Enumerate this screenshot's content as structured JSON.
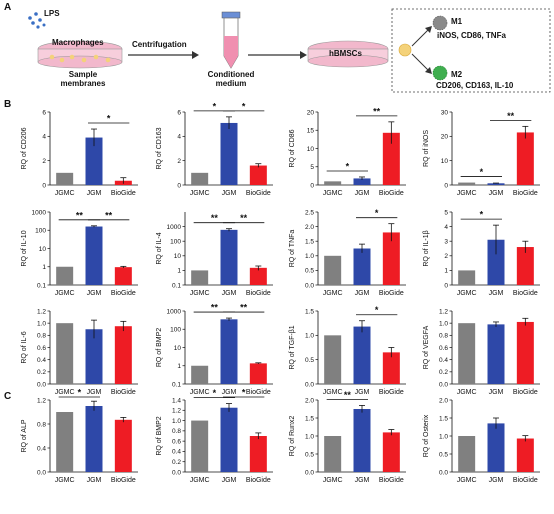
{
  "panel_labels": [
    "A",
    "B",
    "C"
  ],
  "schematic": {
    "lps": "LPS",
    "macrophages": "Macrophages",
    "sample_line1": "Sample",
    "sample_line2": "membranes",
    "centrifugation": "Centrifugation",
    "conditioned_line1": "Conditioned",
    "conditioned_line2": "medium",
    "hbmscs": "hBMSCs",
    "m1": "M1",
    "m1_markers": "iNOS, CD86, TNFa",
    "m2": "M2",
    "m2_markers": "CD206, CD163, IL-10",
    "colors": {
      "dish": "#f2b8cc",
      "tube": "#f08fb0",
      "macrophage": "#f4d27a",
      "m1": "#8a8a8a",
      "m2": "#3fae4f"
    }
  },
  "chart_data": [
    {
      "type": "bar",
      "ylabel": "RQ of CD206",
      "categories": [
        "JGMC",
        "JGM",
        "BioGide"
      ],
      "values": [
        1.0,
        3.9,
        0.35
      ],
      "errors": [
        0,
        0.7,
        0.25
      ],
      "ylim": [
        0,
        6
      ],
      "yticks": [
        "0",
        "2",
        "4",
        "6"
      ],
      "scale": "linear",
      "sig": [
        {
          "from": 1,
          "to": 2,
          "label": "*"
        }
      ]
    },
    {
      "type": "bar",
      "ylabel": "RQ of CD163",
      "categories": [
        "JGMC",
        "JGM",
        "BioGide"
      ],
      "values": [
        1.0,
        5.1,
        1.6
      ],
      "errors": [
        0,
        0.5,
        0.15
      ],
      "ylim": [
        0,
        6
      ],
      "yticks": [
        "0",
        "2",
        "4",
        "6"
      ],
      "scale": "linear",
      "sig": [
        {
          "from": 0,
          "to": 1,
          "label": "*"
        },
        {
          "from": 1,
          "to": 2,
          "label": "*"
        }
      ]
    },
    {
      "type": "bar",
      "ylabel": "RQ of CD86",
      "categories": [
        "JGMC",
        "JGM",
        "BioGide"
      ],
      "values": [
        1.0,
        1.8,
        14.3
      ],
      "errors": [
        0,
        0.4,
        3.0
      ],
      "ylim": [
        0,
        20
      ],
      "yticks": [
        "0",
        "5",
        "10",
        "15",
        "20"
      ],
      "scale": "linear",
      "sig": [
        {
          "from": 0,
          "to": 1,
          "label": "*"
        },
        {
          "from": 1,
          "to": 2,
          "label": "**"
        }
      ]
    },
    {
      "type": "bar",
      "ylabel": "RQ of iNOS",
      "categories": [
        "JGMC",
        "JGM",
        "BioGide"
      ],
      "values": [
        1.0,
        0.7,
        21.6
      ],
      "errors": [
        0,
        0.1,
        2.5
      ],
      "ylim": [
        0,
        30
      ],
      "yticks": [
        "0",
        "10",
        "20",
        "30"
      ],
      "scale": "linear",
      "sig": [
        {
          "from": 0,
          "to": 1,
          "label": "*"
        },
        {
          "from": 1,
          "to": 2,
          "label": "**"
        }
      ]
    },
    {
      "type": "bar",
      "ylabel": "RQ of IL-10",
      "categories": [
        "JGMC",
        "JGM",
        "BioGide"
      ],
      "values": [
        1.0,
        160,
        0.95
      ],
      "errors": [
        0,
        15,
        0.1
      ],
      "ylim": [
        0.1,
        1000
      ],
      "yticks": [
        "0.1",
        "1",
        "10",
        "100",
        "1000"
      ],
      "scale": "log",
      "sig": [
        {
          "from": 0,
          "to": 1,
          "label": "**"
        },
        {
          "from": 1,
          "to": 2,
          "label": "**"
        }
      ]
    },
    {
      "type": "bar",
      "ylabel": "RQ of IL-4",
      "categories": [
        "JGMC",
        "JGM",
        "BioGide"
      ],
      "values": [
        1.0,
        600,
        1.5
      ],
      "errors": [
        0,
        120,
        0.5
      ],
      "ylim": [
        0.1,
        10000
      ],
      "yticks": [
        "0.1",
        "1",
        "10",
        "100",
        "1000"
      ],
      "scale": "log",
      "sig": [
        {
          "from": 0,
          "to": 1,
          "label": "**"
        },
        {
          "from": 1,
          "to": 2,
          "label": "**"
        }
      ]
    },
    {
      "type": "bar",
      "ylabel": "RQ of TNFa",
      "categories": [
        "JGMC",
        "JGM",
        "BioGide"
      ],
      "values": [
        1.0,
        1.25,
        1.8
      ],
      "errors": [
        0,
        0.15,
        0.3
      ],
      "ylim": [
        0,
        2.5
      ],
      "yticks": [
        "0.0",
        "0.5",
        "1.0",
        "1.5",
        "2.0",
        "2.5"
      ],
      "scale": "linear",
      "sig": [
        {
          "from": 1,
          "to": 2,
          "label": "*"
        }
      ]
    },
    {
      "type": "bar",
      "ylabel": "RQ of IL-1β",
      "categories": [
        "JGMC",
        "JGM",
        "BioGide"
      ],
      "values": [
        1.0,
        3.1,
        2.6
      ],
      "errors": [
        0,
        1.0,
        0.4
      ],
      "ylim": [
        0,
        5
      ],
      "yticks": [
        "0",
        "1",
        "2",
        "3",
        "4",
        "5"
      ],
      "scale": "linear",
      "sig": [
        {
          "from": 0,
          "to": 1,
          "label": "*"
        }
      ]
    },
    {
      "type": "bar",
      "ylabel": "RQ of IL-6",
      "categories": [
        "JGMC",
        "JGM",
        "BioGide"
      ],
      "values": [
        1.0,
        0.9,
        0.95
      ],
      "errors": [
        0,
        0.15,
        0.08
      ],
      "ylim": [
        0,
        1.2
      ],
      "yticks": [
        "0.0",
        "0.2",
        "0.4",
        "0.6",
        "0.8",
        "1.0",
        "1.2"
      ],
      "scale": "linear",
      "sig": []
    },
    {
      "type": "bar",
      "ylabel": "RQ of BMP2",
      "categories": [
        "JGMC",
        "JGM",
        "BioGide"
      ],
      "values": [
        1.0,
        350,
        1.35
      ],
      "errors": [
        0,
        60,
        0.1
      ],
      "ylim": [
        0.1,
        1000
      ],
      "yticks": [
        "0.1",
        "1",
        "10",
        "100",
        "1000"
      ],
      "scale": "log",
      "sig": [
        {
          "from": 0,
          "to": 1,
          "label": "**"
        },
        {
          "from": 1,
          "to": 2,
          "label": "**"
        }
      ]
    },
    {
      "type": "bar",
      "ylabel": "RQ of TGF-β1",
      "categories": [
        "JGMC",
        "JGM",
        "BioGide"
      ],
      "values": [
        1.0,
        1.18,
        0.65
      ],
      "errors": [
        0,
        0.12,
        0.1
      ],
      "ylim": [
        0,
        1.5
      ],
      "yticks": [
        "0.0",
        "0.5",
        "1.0",
        "1.5"
      ],
      "scale": "linear",
      "sig": [
        {
          "from": 1,
          "to": 2,
          "label": "*"
        }
      ]
    },
    {
      "type": "bar",
      "ylabel": "RQ of VEGFA",
      "categories": [
        "JGMC",
        "JGM",
        "BioGide"
      ],
      "values": [
        1.0,
        0.98,
        1.02
      ],
      "errors": [
        0,
        0.04,
        0.06
      ],
      "ylim": [
        0,
        1.2
      ],
      "yticks": [
        "0.0",
        "0.2",
        "0.4",
        "0.6",
        "0.8",
        "1.0",
        "1.2"
      ],
      "scale": "linear",
      "sig": []
    },
    {
      "type": "bar",
      "ylabel": "RQ of ALP",
      "categories": [
        "JGMC",
        "JGM",
        "BioGide"
      ],
      "values": [
        1.0,
        1.1,
        0.87
      ],
      "errors": [
        0,
        0.08,
        0.04
      ],
      "ylim": [
        0,
        1.2
      ],
      "yticks": [
        "0.0",
        "0.4",
        "0.8",
        "1.2"
      ],
      "scale": "linear",
      "sig": [
        {
          "from": 0,
          "to": 1,
          "label": "*"
        }
      ]
    },
    {
      "type": "bar",
      "ylabel": "RQ of BMP2",
      "categories": [
        "JGMC",
        "JGM",
        "BioGide"
      ],
      "values": [
        1.0,
        1.25,
        0.7
      ],
      "errors": [
        0,
        0.08,
        0.06
      ],
      "ylim": [
        0,
        1.4
      ],
      "yticks": [
        "0.0",
        "0.2",
        "0.4",
        "0.6",
        "0.8",
        "1.0",
        "1.2",
        "1.4"
      ],
      "scale": "linear",
      "sig": [
        {
          "from": 0,
          "to": 1,
          "label": "*"
        },
        {
          "from": 1,
          "to": 2,
          "label": "*"
        }
      ]
    },
    {
      "type": "bar",
      "ylabel": "RQ of Runx2",
      "categories": [
        "JGMC",
        "JGM",
        "BioGide"
      ],
      "values": [
        1.0,
        1.75,
        1.1
      ],
      "errors": [
        0,
        0.1,
        0.08
      ],
      "ylim": [
        0,
        2
      ],
      "yticks": [
        "0.0",
        "0.5",
        "1.0",
        "1.5",
        "2.0"
      ],
      "scale": "linear",
      "sig": [
        {
          "from": 0,
          "to": 1,
          "label": "**"
        }
      ]
    },
    {
      "type": "bar",
      "ylabel": "RQ of Osterix",
      "categories": [
        "JGMC",
        "JGM",
        "BioGide"
      ],
      "values": [
        1.0,
        1.35,
        0.93
      ],
      "errors": [
        0,
        0.15,
        0.08
      ],
      "ylim": [
        0,
        2
      ],
      "yticks": [
        "0.0",
        "0.5",
        "1.0",
        "1.5",
        "2.0"
      ],
      "scale": "linear",
      "sig": []
    }
  ],
  "bar_colors": [
    "#808080",
    "#2e48a8",
    "#ee1c24"
  ]
}
